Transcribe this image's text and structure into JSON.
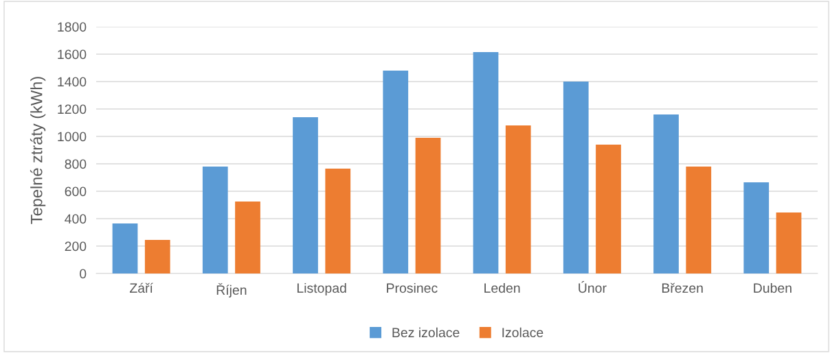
{
  "chart_data": {
    "type": "bar",
    "ylabel": "Tepelné ztráty (kWh)",
    "categories": [
      "Září",
      "Říjen",
      "Listopad",
      "Prosinec",
      "Leden",
      "Únor",
      "Březen",
      "Duben"
    ],
    "series": [
      {
        "name": "Bez izolace",
        "color": "#5b9bd5",
        "values": [
          365,
          780,
          1140,
          1480,
          1615,
          1400,
          1160,
          665
        ]
      },
      {
        "name": "Izolace",
        "color": "#ed7d31",
        "values": [
          245,
          525,
          765,
          990,
          1080,
          940,
          780,
          445
        ]
      }
    ],
    "ylim": [
      0,
      1800
    ],
    "yticks": [
      0,
      200,
      400,
      600,
      800,
      1000,
      1200,
      1400,
      1600,
      1800
    ],
    "grid": "y",
    "legend": "bottom"
  }
}
